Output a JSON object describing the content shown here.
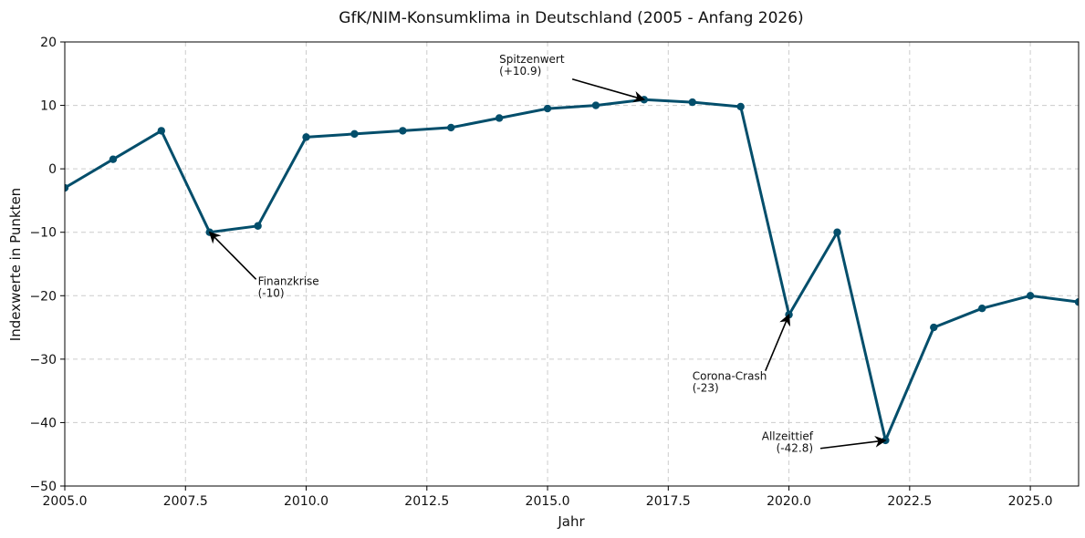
{
  "chart_data": {
    "type": "line",
    "title": "GfK/NIM-Konsumklima in Deutschland (2005 - Anfang 2026)",
    "xlabel": "Jahr",
    "ylabel": "Indexwerte in Punkten",
    "xlim": [
      2005,
      2026
    ],
    "ylim": [
      -50,
      20
    ],
    "grid": true,
    "color": "#034e6b",
    "x_ticks": [
      2005.0,
      2007.5,
      2010.0,
      2012.5,
      2015.0,
      2017.5,
      2020.0,
      2022.5,
      2025.0
    ],
    "x_tick_labels": [
      "2005.0",
      "2007.5",
      "2010.0",
      "2012.5",
      "2015.0",
      "2017.5",
      "2020.0",
      "2022.5",
      "2025.0"
    ],
    "y_ticks": [
      20,
      10,
      0,
      -10,
      -20,
      -30,
      -40,
      -50
    ],
    "y_tick_labels": [
      "20",
      "10",
      "0",
      "−10",
      "−20",
      "−30",
      "−40",
      "−50"
    ],
    "series": [
      {
        "x": [
          2005,
          2006,
          2007,
          2008,
          2009,
          2010,
          2011,
          2012,
          2013,
          2014,
          2015,
          2016,
          2017,
          2018,
          2019,
          2020,
          2021,
          2022,
          2023,
          2024,
          2025,
          2026
        ],
        "values": [
          -3,
          1.5,
          6,
          -10,
          -9,
          5,
          5.5,
          6,
          6.5,
          8,
          9.5,
          10,
          10.9,
          10.5,
          9.8,
          -23,
          -10,
          -42.8,
          -25,
          -22,
          -20,
          -21
        ]
      }
    ],
    "annotations": [
      {
        "lines": [
          "Spitzenwert",
          "(+10.9)"
        ],
        "point": [
          2017,
          10.9
        ],
        "text_at": [
          2014,
          15
        ],
        "align": "start"
      },
      {
        "lines": [
          "Finanzkrise",
          "(-10)"
        ],
        "point": [
          2008,
          -10
        ],
        "text_at": [
          2009,
          -20
        ],
        "align": "start"
      },
      {
        "lines": [
          "Corona-Crash",
          "(-23)"
        ],
        "point": [
          2020,
          -23
        ],
        "text_at": [
          2018,
          -35
        ],
        "align": "start"
      },
      {
        "lines": [
          "Allzeittief",
          "(-42.8)"
        ],
        "point": [
          2022,
          -42.8
        ],
        "text_at": [
          2020.5,
          -44.5
        ],
        "align": "end"
      }
    ]
  }
}
